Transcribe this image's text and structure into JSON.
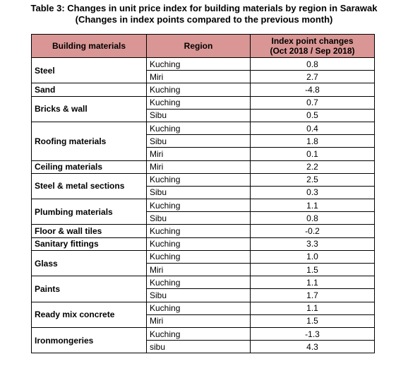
{
  "title": {
    "line1": "Table 3: Changes in unit price index for building materials by region in Sarawak",
    "line2": "(Changes in index points compared to the previous month)"
  },
  "table": {
    "header": {
      "material": "Building materials",
      "region": "Region",
      "change_line1": "Index point changes",
      "change_line2": "(Oct 2018 / Sep 2018)"
    },
    "groups": [
      {
        "material": "Steel",
        "rows": [
          [
            "Kuching",
            "0.8"
          ],
          [
            "Miri",
            "2.7"
          ]
        ]
      },
      {
        "material": "Sand",
        "rows": [
          [
            "Kuching",
            "-4.8"
          ]
        ]
      },
      {
        "material": "Bricks & wall",
        "rows": [
          [
            "Kuching",
            "0.7"
          ],
          [
            "Sibu",
            "0.5"
          ]
        ]
      },
      {
        "material": "Roofing materials",
        "rows": [
          [
            "Kuching",
            "0.4"
          ],
          [
            "Sibu",
            "1.8"
          ],
          [
            "Miri",
            "0.1"
          ]
        ]
      },
      {
        "material": "Ceiling materials",
        "rows": [
          [
            "Miri",
            "2.2"
          ]
        ]
      },
      {
        "material": "Steel & metal sections",
        "rows": [
          [
            "Kuching",
            "2.5"
          ],
          [
            "Sibu",
            "0.3"
          ]
        ]
      },
      {
        "material": "Plumbing materials",
        "rows": [
          [
            "Kuching",
            "1.1"
          ],
          [
            "Sibu",
            "0.8"
          ]
        ]
      },
      {
        "material": "Floor & wall tiles",
        "rows": [
          [
            "Kuching",
            "-0.2"
          ]
        ]
      },
      {
        "material": "Sanitary fittings",
        "rows": [
          [
            "Kuching",
            "3.3"
          ]
        ]
      },
      {
        "material": "Glass",
        "rows": [
          [
            "Kuching",
            "1.0"
          ],
          [
            "Miri",
            "1.5"
          ]
        ]
      },
      {
        "material": "Paints",
        "rows": [
          [
            "Kuching",
            "1.1"
          ],
          [
            "Sibu",
            "1.7"
          ]
        ]
      },
      {
        "material": "Ready mix concrete",
        "rows": [
          [
            "Kuching",
            "1.1"
          ],
          [
            "Miri",
            "1.5"
          ]
        ]
      },
      {
        "material": "Ironmongeries",
        "rows": [
          [
            "Kuching",
            "-1.3"
          ],
          [
            "sibu",
            "4.3"
          ]
        ]
      }
    ]
  }
}
